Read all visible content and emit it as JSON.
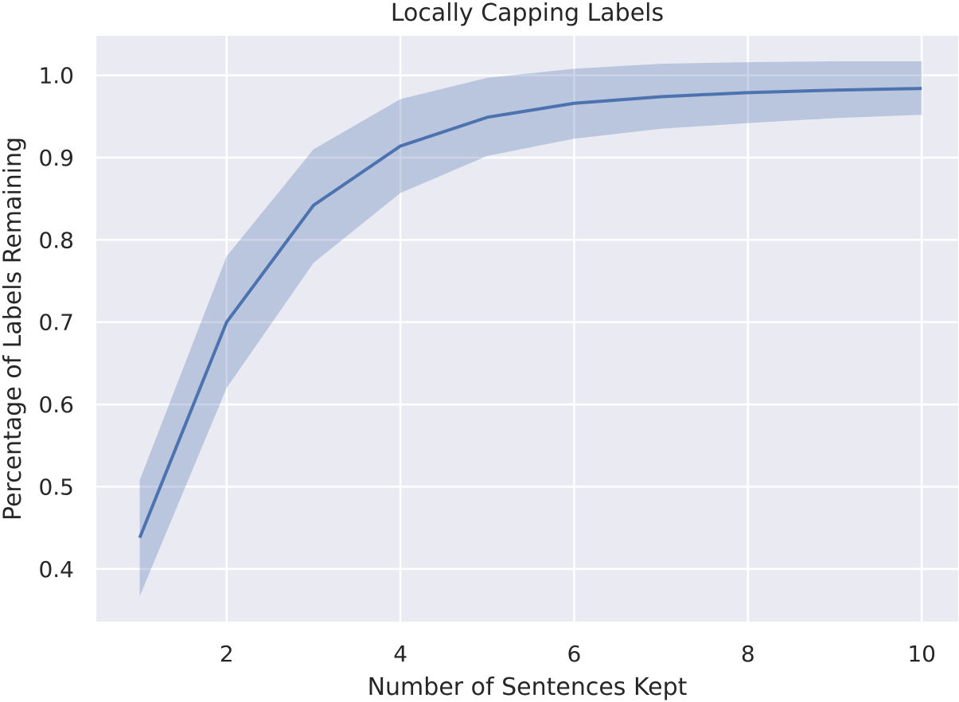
{
  "chart_data": {
    "type": "line",
    "title": "Locally Capping Labels",
    "xlabel": "Number of Sentences Kept",
    "ylabel": "Percentage of Labels Remaining",
    "xlim": [
      0.5,
      10.42
    ],
    "ylim": [
      0.336,
      1.048
    ],
    "xticks": [
      2,
      4,
      6,
      8,
      10
    ],
    "yticks": [
      0.4,
      0.5,
      0.6,
      0.7,
      0.8,
      0.9,
      1.0
    ],
    "xtick_labels": [
      "2",
      "4",
      "6",
      "8",
      "10"
    ],
    "ytick_labels": [
      "0.4",
      "0.5",
      "0.6",
      "0.7",
      "0.8",
      "0.9",
      "1.0"
    ],
    "grid": true,
    "series": [
      {
        "x": [
          1,
          2,
          3,
          4,
          5,
          6,
          7,
          8,
          9,
          10
        ],
        "values": [
          0.438,
          0.7,
          0.842,
          0.914,
          0.949,
          0.966,
          0.974,
          0.979,
          0.982,
          0.984
        ],
        "lower": [
          0.367,
          0.62,
          0.772,
          0.857,
          0.902,
          0.923,
          0.935,
          0.942,
          0.948,
          0.952
        ],
        "upper": [
          0.508,
          0.78,
          0.91,
          0.971,
          0.997,
          1.008,
          1.014,
          1.016,
          1.017,
          1.017
        ]
      }
    ]
  },
  "colors": {
    "background": "#eaeaf2",
    "grid": "#ffffff",
    "line": "#4c72b0",
    "band": "#4c72b0"
  }
}
